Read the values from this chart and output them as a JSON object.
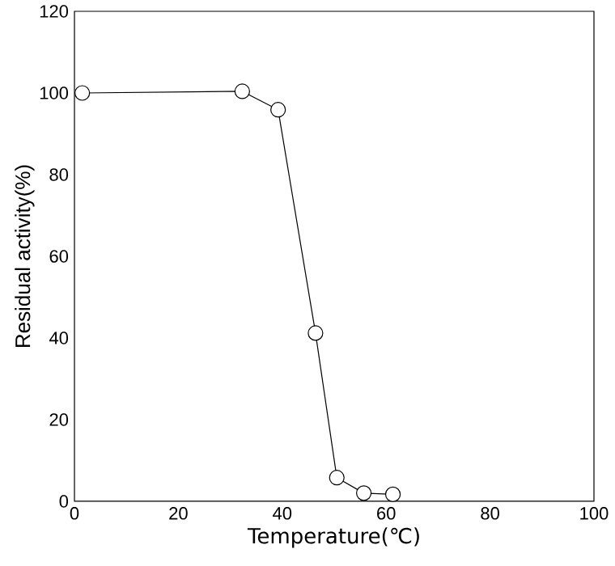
{
  "chart_data": {
    "type": "line",
    "xlabel": "Temperature(℃)",
    "ylabel": "Residual activity(%)",
    "x": [
      1.5,
      32.3,
      39.2,
      46.4,
      50.5,
      55.7,
      61.3
    ],
    "values": [
      100,
      100.4,
      95.9,
      41.2,
      5.8,
      2,
      1.7
    ],
    "color": "#000000",
    "marker": "circle",
    "line_style": "solid",
    "xlim": [
      0,
      100
    ],
    "ylim": [
      0,
      120
    ],
    "xticks": [
      0,
      20,
      40,
      60,
      80,
      100
    ],
    "yticks": [
      0,
      20,
      40,
      60,
      80,
      100,
      120
    ]
  }
}
